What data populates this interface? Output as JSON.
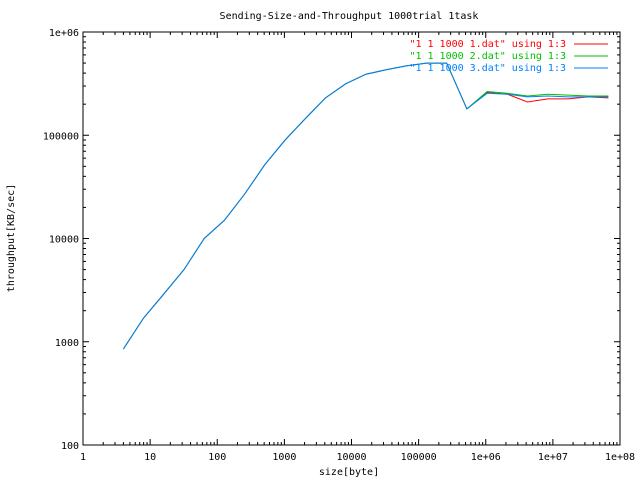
{
  "chart_data": {
    "type": "line",
    "title": "Sending-Size-and-Throughput 1000trial 1task",
    "xlabel": "size[byte]",
    "ylabel": "throughput[KB/sec]",
    "x_scale": "log",
    "y_scale": "log",
    "xlim": [
      1,
      100000000
    ],
    "ylim": [
      100,
      1000000
    ],
    "grid": false,
    "legend_position": "top-right",
    "x_ticks": [
      {
        "value": 1,
        "label": "1"
      },
      {
        "value": 10,
        "label": "10"
      },
      {
        "value": 100,
        "label": "100"
      },
      {
        "value": 1000,
        "label": "1000"
      },
      {
        "value": 10000,
        "label": "10000"
      },
      {
        "value": 100000,
        "label": "100000"
      },
      {
        "value": 1000000,
        "label": "1e+06"
      },
      {
        "value": 10000000,
        "label": "1e+07"
      },
      {
        "value": 100000000,
        "label": "1e+08"
      }
    ],
    "y_ticks": [
      {
        "value": 100,
        "label": "100"
      },
      {
        "value": 1000,
        "label": "1000"
      },
      {
        "value": 10000,
        "label": "10000"
      },
      {
        "value": 100000,
        "label": "100000"
      },
      {
        "value": 1000000,
        "label": "1e+06"
      }
    ],
    "series": [
      {
        "name": "\"1 1 1000 1.dat\" using 1:3",
        "color": "#ff0000",
        "x": [
          4,
          8,
          16,
          32,
          64,
          128,
          256,
          512,
          1024,
          2048,
          4096,
          8192,
          16384,
          32768,
          65536,
          131072,
          262144,
          524288,
          1048576,
          2097152,
          4194304,
          8388608,
          16777216,
          33554432,
          67108864
        ],
        "y": [
          850,
          1700,
          2900,
          5000,
          10000,
          15000,
          27000,
          52000,
          90000,
          145000,
          230000,
          315000,
          390000,
          430000,
          470000,
          500000,
          500000,
          180000,
          260000,
          250000,
          210000,
          225000,
          225000,
          235000,
          230000
        ]
      },
      {
        "name": "\"1 1 1000 2.dat\" using 1:3",
        "color": "#00c000",
        "x": [
          4,
          8,
          16,
          32,
          64,
          128,
          256,
          512,
          1024,
          2048,
          4096,
          8192,
          16384,
          32768,
          65536,
          131072,
          262144,
          524288,
          1048576,
          2097152,
          4194304,
          8388608,
          16777216,
          33554432,
          67108864
        ],
        "y": [
          850,
          1700,
          2900,
          5000,
          10000,
          15000,
          27000,
          52000,
          90000,
          145000,
          230000,
          315000,
          390000,
          430000,
          470000,
          500000,
          500000,
          180000,
          265000,
          255000,
          240000,
          250000,
          245000,
          240000,
          240000
        ]
      },
      {
        "name": "\"1 1 1000 3.dat\" using 1:3",
        "color": "#0080ff",
        "x": [
          4,
          8,
          16,
          32,
          64,
          128,
          256,
          512,
          1024,
          2048,
          4096,
          8192,
          16384,
          32768,
          65536,
          131072,
          262144,
          524288,
          1048576,
          2097152,
          4194304,
          8388608,
          16777216,
          33554432,
          67108864
        ],
        "y": [
          850,
          1700,
          2900,
          5000,
          10000,
          15000,
          27000,
          52000,
          90000,
          145000,
          230000,
          315000,
          390000,
          430000,
          470000,
          500000,
          500000,
          180000,
          255000,
          250000,
          235000,
          240000,
          235000,
          235000,
          235000
        ]
      }
    ]
  }
}
